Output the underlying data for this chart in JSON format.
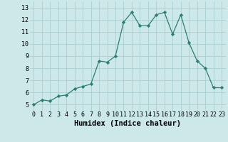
{
  "x": [
    0,
    1,
    2,
    3,
    4,
    5,
    6,
    7,
    8,
    9,
    10,
    11,
    12,
    13,
    14,
    15,
    16,
    17,
    18,
    19,
    20,
    21,
    22,
    23
  ],
  "y": [
    5.0,
    5.4,
    5.3,
    5.7,
    5.8,
    6.3,
    6.5,
    6.7,
    8.6,
    8.5,
    9.0,
    11.8,
    12.6,
    11.5,
    11.5,
    12.4,
    12.6,
    10.8,
    12.4,
    10.1,
    8.6,
    8.0,
    6.4,
    6.4
  ],
  "line_color": "#2e7d6e",
  "marker": "D",
  "marker_size": 2.2,
  "bg_color": "#cce8e8",
  "grid_color": "#aacfcf",
  "xlabel": "Humidex (Indice chaleur)",
  "xlim": [
    -0.5,
    23.5
  ],
  "ylim": [
    4.5,
    13.5
  ],
  "yticks": [
    5,
    6,
    7,
    8,
    9,
    10,
    11,
    12,
    13
  ],
  "xticks": [
    0,
    1,
    2,
    3,
    4,
    5,
    6,
    7,
    8,
    9,
    10,
    11,
    12,
    13,
    14,
    15,
    16,
    17,
    18,
    19,
    20,
    21,
    22,
    23
  ],
  "tick_fontsize": 6,
  "xlabel_fontsize": 7.5
}
